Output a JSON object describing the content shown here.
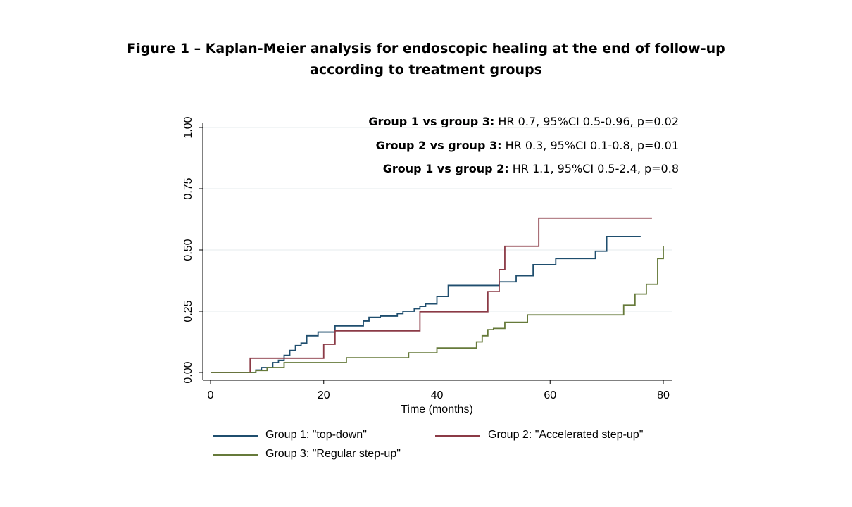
{
  "title_lines": [
    "Figure 1 – Kaplan-Meier analysis for endoscopic healing at the end of follow-up",
    "according to treatment groups"
  ],
  "stats": [
    {
      "label": "Group  1 vs group 3:",
      "text": " HR 0.7, 95%CI 0.5-0.96, p=0.02"
    },
    {
      "label": "Group  2 vs group 3:",
      "text": " HR 0.3, 95%CI 0.1-0.8, p=0.01"
    },
    {
      "label": "Group  1 vs group 2:",
      "text": " HR 1.1, 95%CI 0.5-2.4, p=0.8"
    }
  ],
  "chart_data": {
    "type": "line",
    "step": true,
    "xlabel": "Time (months)",
    "ylabel": "",
    "xlim": [
      0,
      80
    ],
    "ylim": [
      0,
      1
    ],
    "xticks": [
      "0",
      "20",
      "40",
      "60",
      "80"
    ],
    "yticks": [
      "0.00",
      "0.25",
      "0.50",
      "0.75",
      "1.00"
    ],
    "xtick_values": [
      0,
      20,
      40,
      60,
      80
    ],
    "ytick_values": [
      0,
      0.25,
      0.5,
      0.75,
      1
    ],
    "grid": true,
    "legend_position": "bottom",
    "series": [
      {
        "name": "Group 1: \"top-down\"",
        "color": "#1f4e6e",
        "x": [
          0,
          8,
          9,
          11,
          12,
          13,
          14,
          15,
          16,
          17,
          19,
          22,
          27,
          28,
          30,
          33,
          34,
          36,
          37,
          38,
          40,
          42,
          51,
          54,
          57,
          61,
          68,
          70,
          76
        ],
        "y": [
          0,
          0.01,
          0.02,
          0.04,
          0.05,
          0.07,
          0.09,
          0.11,
          0.12,
          0.15,
          0.165,
          0.19,
          0.21,
          0.225,
          0.23,
          0.24,
          0.25,
          0.26,
          0.27,
          0.28,
          0.31,
          0.355,
          0.37,
          0.395,
          0.44,
          0.465,
          0.495,
          0.555,
          0.555
        ]
      },
      {
        "name": "Group 2: \"Accelerated step-up\"",
        "color": "#8b3a46",
        "x": [
          0,
          7,
          20,
          22,
          37,
          49,
          51,
          52,
          58,
          78
        ],
        "y": [
          0,
          0.058,
          0.115,
          0.17,
          0.248,
          0.33,
          0.42,
          0.515,
          0.63,
          0.63
        ]
      },
      {
        "name": "Group 3: \"Regular step-up\"",
        "color": "#667a3a",
        "x": [
          0,
          8,
          10,
          13,
          24,
          35,
          40,
          47,
          48,
          49,
          50,
          52,
          56,
          73,
          75,
          77,
          79,
          80
        ],
        "y": [
          0,
          0.008,
          0.02,
          0.04,
          0.06,
          0.08,
          0.1,
          0.125,
          0.15,
          0.175,
          0.18,
          0.205,
          0.235,
          0.275,
          0.32,
          0.36,
          0.465,
          0.515
        ]
      }
    ]
  }
}
